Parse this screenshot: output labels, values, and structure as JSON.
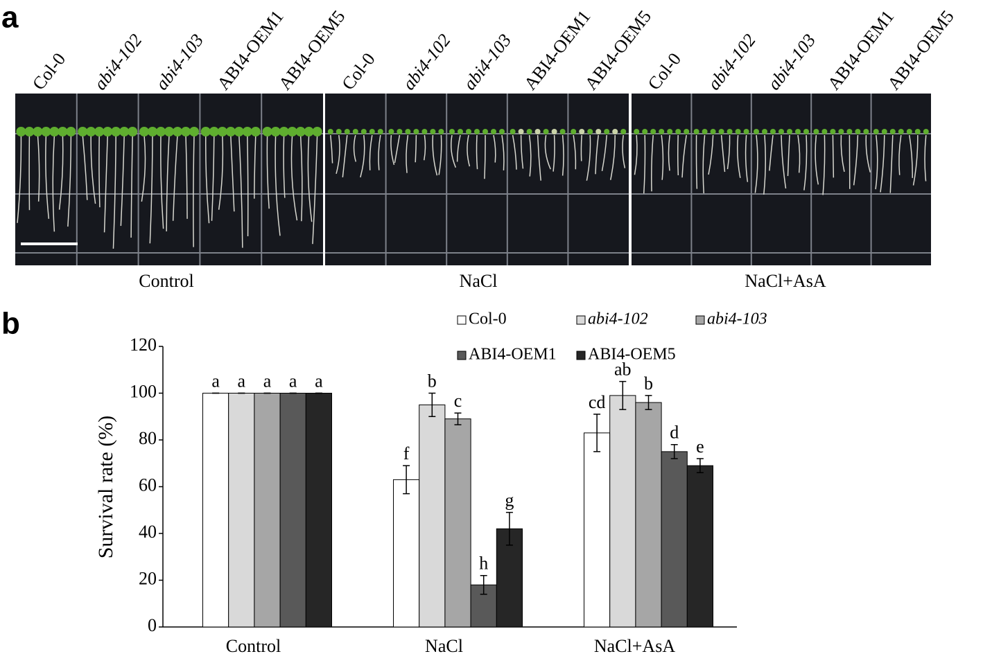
{
  "panel_a": {
    "label": "a"
  },
  "chart_data": {
    "type": "bar",
    "panel_label": "b",
    "ylabel": "Survival rate (%)",
    "categories": [
      "Control",
      "NaCl",
      "NaCl+AsA"
    ],
    "series": [
      {
        "name": "Col-0",
        "italic": false,
        "color": "#ffffff",
        "values": [
          100,
          63,
          83
        ],
        "errors": [
          0,
          6,
          8
        ],
        "letters": [
          "a",
          "f",
          "cd"
        ]
      },
      {
        "name": "abi4-102",
        "italic": true,
        "color": "#d9d9d9",
        "values": [
          100,
          95,
          99
        ],
        "errors": [
          0,
          5,
          6
        ],
        "letters": [
          "a",
          "b",
          "ab"
        ]
      },
      {
        "name": "abi4-103",
        "italic": true,
        "color": "#a6a6a6",
        "values": [
          100,
          89,
          96
        ],
        "errors": [
          0,
          2.5,
          3
        ],
        "letters": [
          "a",
          "c",
          "b"
        ]
      },
      {
        "name": "ABI4-OEM1",
        "italic": false,
        "color": "#595959",
        "values": [
          100,
          18,
          75
        ],
        "errors": [
          0,
          4,
          3
        ],
        "letters": [
          "a",
          "h",
          "d"
        ]
      },
      {
        "name": "ABI4-OEM5",
        "italic": false,
        "color": "#262626",
        "values": [
          100,
          42,
          69
        ],
        "errors": [
          0,
          7,
          3
        ],
        "letters": [
          "a",
          "g",
          "e"
        ]
      }
    ],
    "ylim": [
      0,
      120
    ],
    "yticks": [
      0,
      20,
      40,
      60,
      80,
      100,
      120
    ],
    "legend": "top-right"
  }
}
